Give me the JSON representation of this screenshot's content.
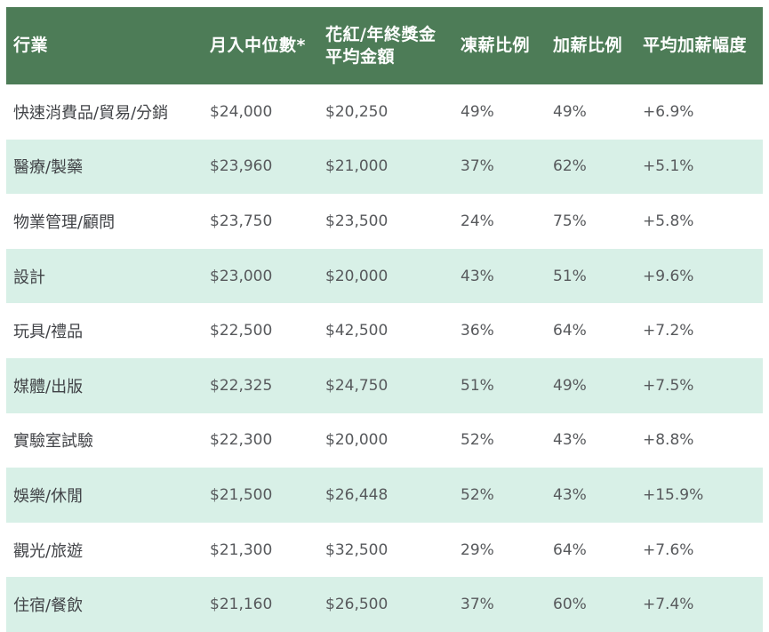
{
  "header": {
    "col_industry": "行業",
    "col_median_income": "月入中位數*",
    "col_bonus_line1": "花紅/年終獎金",
    "col_bonus_line2": "平均金額",
    "col_freeze": "凍薪比例",
    "col_raise": "加薪比例",
    "col_avg_raise": "平均加薪幅度"
  },
  "rows": [
    {
      "industry": "快速消費品/貿易/分銷",
      "median_income": "$24,000",
      "bonus": "$20,250",
      "freeze": "49%",
      "raise": "49%",
      "avg_raise": "+6.9%"
    },
    {
      "industry": "醫療/製藥",
      "median_income": "$23,960",
      "bonus": "$21,000",
      "freeze": "37%",
      "raise": "62%",
      "avg_raise": "+5.1%"
    },
    {
      "industry": "物業管理/顧問",
      "median_income": "$23,750",
      "bonus": "$23,500",
      "freeze": "24%",
      "raise": "75%",
      "avg_raise": "+5.8%"
    },
    {
      "industry": "設計",
      "median_income": "$23,000",
      "bonus": "$20,000",
      "freeze": "43%",
      "raise": "51%",
      "avg_raise": "+9.6%"
    },
    {
      "industry": "玩具/禮品",
      "median_income": "$22,500",
      "bonus": "$42,500",
      "freeze": "36%",
      "raise": "64%",
      "avg_raise": "+7.2%"
    },
    {
      "industry": "媒體/出版",
      "median_income": "$22,325",
      "bonus": "$24,750",
      "freeze": "51%",
      "raise": "49%",
      "avg_raise": "+7.5%"
    },
    {
      "industry": "實驗室試驗",
      "median_income": "$22,300",
      "bonus": "$20,000",
      "freeze": "52%",
      "raise": "43%",
      "avg_raise": "+8.8%"
    },
    {
      "industry": "娛樂/休閒",
      "median_income": "$21,500",
      "bonus": "$26,448",
      "freeze": "52%",
      "raise": "43%",
      "avg_raise": "+15.9%"
    },
    {
      "industry": "觀光/旅遊",
      "median_income": "$21,300",
      "bonus": "$32,500",
      "freeze": "29%",
      "raise": "64%",
      "avg_raise": "+7.6%"
    },
    {
      "industry": "住宿/餐飲",
      "median_income": "$21,160",
      "bonus": "$26,500",
      "freeze": "37%",
      "raise": "60%",
      "avg_raise": "+7.4%"
    }
  ],
  "colors": {
    "header_bg": "#4d7c57",
    "header_text": "#ffffff",
    "row_bg": "#ffffff",
    "row_alt_bg": "#d8f0e7",
    "label_text": "#414347",
    "value_text": "#57595c"
  },
  "chart_data": {
    "type": "table",
    "title": "行業薪酬調查表",
    "columns": [
      "行業",
      "月入中位數*",
      "花紅/年終獎金平均金額",
      "凍薪比例",
      "加薪比例",
      "平均加薪幅度"
    ],
    "rows": [
      [
        "快速消費品/貿易/分銷",
        "$24,000",
        "$20,250",
        "49%",
        "49%",
        "+6.9%"
      ],
      [
        "醫療/製藥",
        "$23,960",
        "$21,000",
        "37%",
        "62%",
        "+5.1%"
      ],
      [
        "物業管理/顧問",
        "$23,750",
        "$23,500",
        "24%",
        "75%",
        "+5.8%"
      ],
      [
        "設計",
        "$23,000",
        "$20,000",
        "43%",
        "51%",
        "+9.6%"
      ],
      [
        "玩具/禮品",
        "$22,500",
        "$42,500",
        "36%",
        "64%",
        "+7.2%"
      ],
      [
        "媒體/出版",
        "$22,325",
        "$24,750",
        "51%",
        "49%",
        "+7.5%"
      ],
      [
        "實驗室試驗",
        "$22,300",
        "$20,000",
        "52%",
        "43%",
        "+8.8%"
      ],
      [
        "娛樂/休閒",
        "$21,500",
        "$26,448",
        "52%",
        "43%",
        "+15.9%"
      ],
      [
        "觀光/旅遊",
        "$21,300",
        "$32,500",
        "29%",
        "64%",
        "+7.6%"
      ],
      [
        "住宿/餐飲",
        "$21,160",
        "$26,500",
        "37%",
        "60%",
        "+7.4%"
      ]
    ],
    "median_income_values": [
      24000,
      23960,
      23750,
      23000,
      22500,
      22325,
      22300,
      21500,
      21300,
      21160
    ],
    "bonus_values": [
      20250,
      21000,
      23500,
      20000,
      42500,
      24750,
      20000,
      26448,
      32500,
      26500
    ],
    "freeze_pct": [
      49,
      37,
      24,
      43,
      36,
      51,
      52,
      52,
      29,
      37
    ],
    "raise_pct": [
      49,
      62,
      75,
      51,
      64,
      49,
      43,
      43,
      64,
      60
    ],
    "avg_raise_pct": [
      6.9,
      5.1,
      5.8,
      9.6,
      7.2,
      7.5,
      8.8,
      15.9,
      7.6,
      7.4
    ],
    "layout": {
      "striped": true,
      "stripe_color": "#d8f0e7",
      "header_color": "#4d7c57",
      "grid": false
    }
  }
}
